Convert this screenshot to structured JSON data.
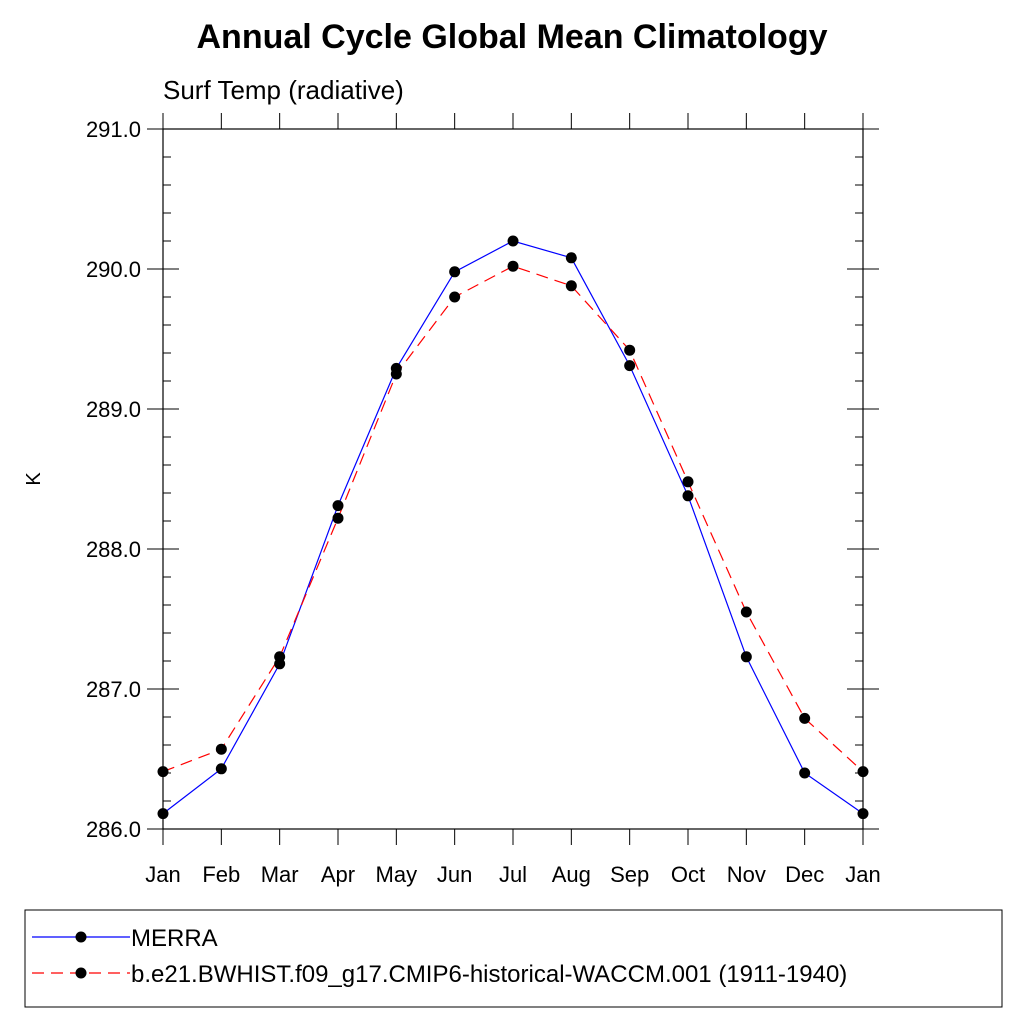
{
  "chart_data": {
    "type": "line",
    "title": "Annual Cycle Global Mean Climatology",
    "subtitle": "Surf Temp (radiative)",
    "xlabel": "",
    "ylabel": "K",
    "categories": [
      "Jan",
      "Feb",
      "Mar",
      "Apr",
      "May",
      "Jun",
      "Jul",
      "Aug",
      "Sep",
      "Oct",
      "Nov",
      "Dec",
      "Jan"
    ],
    "ylim": [
      286.0,
      291.0
    ],
    "yticks": [
      "286.0",
      "287.0",
      "288.0",
      "289.0",
      "290.0",
      "291.0"
    ],
    "grid": false,
    "legend_position": "bottom",
    "series": [
      {
        "name": "MERRA",
        "color": "#0000ff",
        "dash": "solid",
        "values": [
          286.11,
          286.43,
          287.18,
          288.31,
          289.29,
          289.98,
          290.2,
          290.08,
          289.31,
          288.38,
          287.23,
          286.4,
          286.11
        ]
      },
      {
        "name": "b.e21.BWHIST.f09_g17.CMIP6-historical-WACCM.001 (1911-1940)",
        "color": "#ff0000",
        "dash": "dashed",
        "values": [
          286.41,
          286.57,
          287.23,
          288.22,
          289.25,
          289.8,
          290.02,
          289.88,
          289.42,
          288.48,
          287.55,
          286.79,
          286.41
        ]
      }
    ]
  }
}
